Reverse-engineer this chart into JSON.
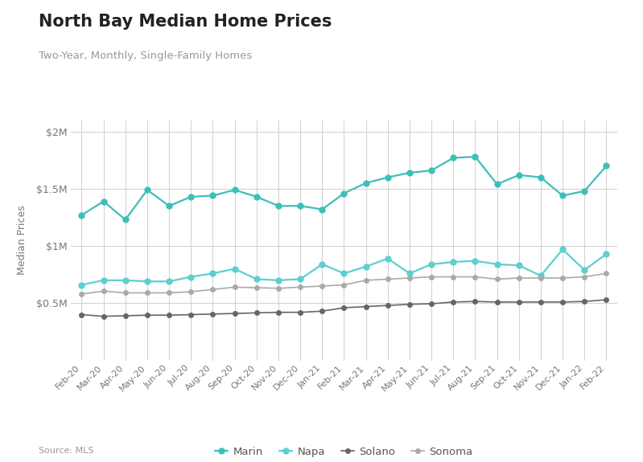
{
  "title": "North Bay Median Home Prices",
  "subtitle": "Two-Year, Monthly, Single-Family Homes",
  "source": "Source: MLS",
  "ylabel": "Median Prices",
  "background_color": "#ffffff",
  "plot_bg_color": "#ffffff",
  "grid_color": "#d0d0d0",
  "months": [
    "Feb-20",
    "Mar-20",
    "Apr-20",
    "May-20",
    "Jun-20",
    "Jul-20",
    "Aug-20",
    "Sep-20",
    "Oct-20",
    "Nov-20",
    "Dec-20",
    "Jan-21",
    "Feb-21",
    "Mar-21",
    "Apr-21",
    "May-21",
    "Jun-21",
    "Jul-21",
    "Aug-21",
    "Sep-21",
    "Oct-21",
    "Nov-21",
    "Dec-21",
    "Jan-22",
    "Feb-22"
  ],
  "marin": [
    1270000,
    1390000,
    1230000,
    1490000,
    1350000,
    1430000,
    1440000,
    1490000,
    1430000,
    1350000,
    1350000,
    1320000,
    1460000,
    1550000,
    1600000,
    1640000,
    1660000,
    1770000,
    1780000,
    1540000,
    1620000,
    1600000,
    1440000,
    1480000,
    1700000
  ],
  "napa": [
    660000,
    700000,
    700000,
    690000,
    690000,
    730000,
    760000,
    800000,
    710000,
    700000,
    710000,
    840000,
    760000,
    820000,
    890000,
    760000,
    840000,
    860000,
    870000,
    840000,
    830000,
    740000,
    970000,
    790000,
    930000
  ],
  "solano": [
    400000,
    385000,
    390000,
    395000,
    395000,
    400000,
    405000,
    410000,
    415000,
    420000,
    420000,
    430000,
    460000,
    470000,
    480000,
    490000,
    495000,
    510000,
    515000,
    510000,
    510000,
    510000,
    510000,
    515000,
    530000
  ],
  "sonoma": [
    580000,
    605000,
    590000,
    590000,
    590000,
    600000,
    620000,
    640000,
    635000,
    630000,
    640000,
    650000,
    660000,
    700000,
    710000,
    720000,
    730000,
    730000,
    730000,
    710000,
    720000,
    720000,
    720000,
    730000,
    760000
  ],
  "marin_color": "#3dbfb8",
  "napa_color": "#5dcfcf",
  "solano_color": "#666666",
  "sonoma_color": "#aaaaaa",
  "ylim": [
    0,
    2100000
  ],
  "yticks": [
    500000,
    1000000,
    1500000,
    2000000
  ],
  "ytick_labels": [
    "$0.5M",
    "$1M",
    "$1.5M",
    "$2M"
  ]
}
